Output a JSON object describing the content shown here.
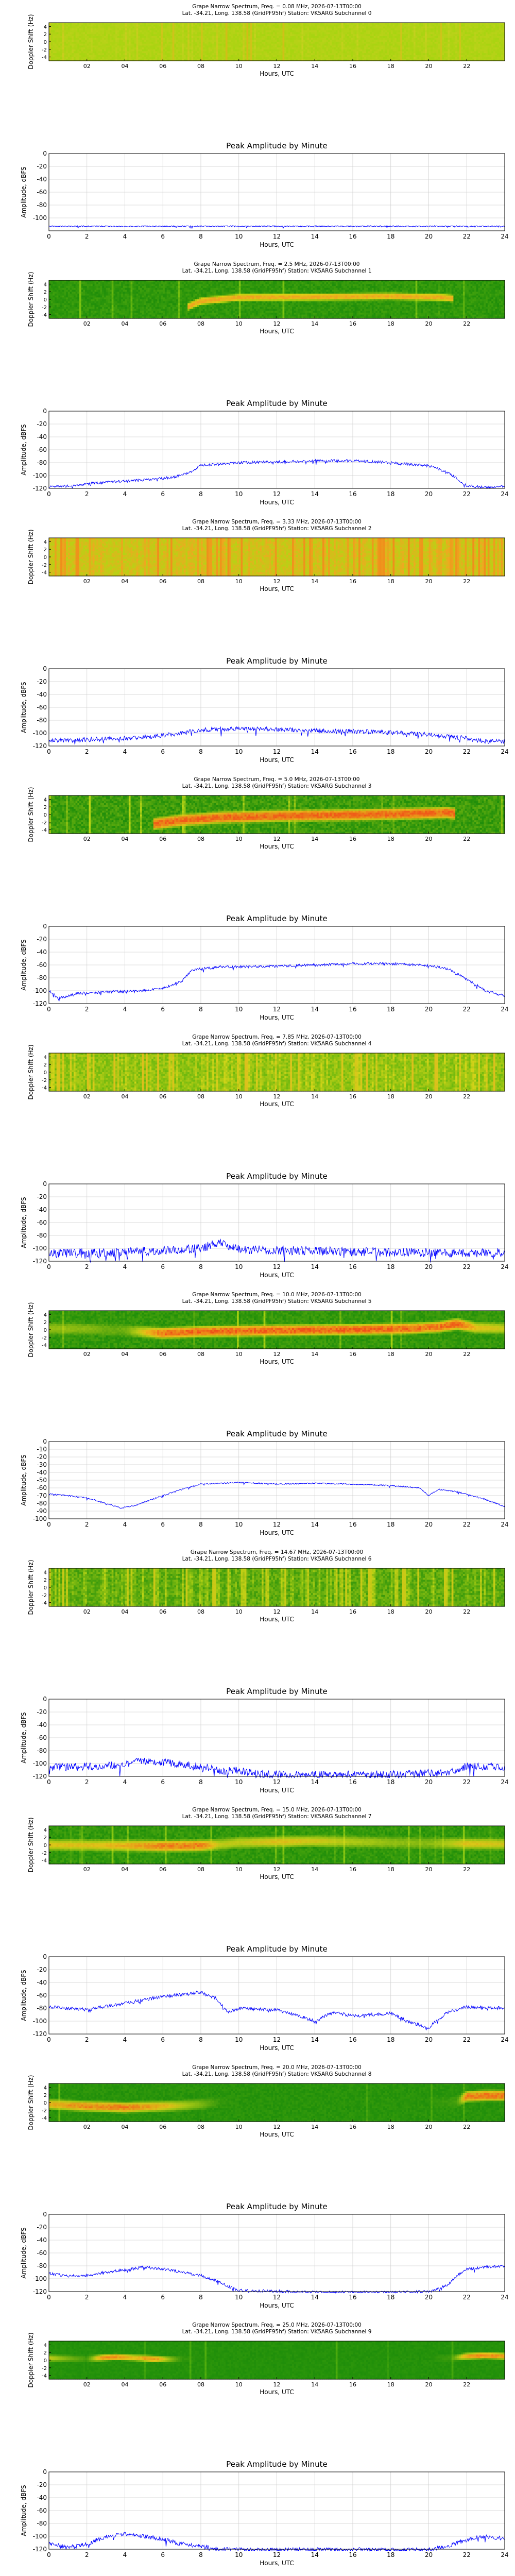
{
  "figure": {
    "station_line": "Lat. -34.21, Long. 138.58 (GridPF95hf) Station: VK5ARG Subchannel {n}",
    "amp_title": "Peak Amplitude by Minute",
    "xlabel": "Hours, UTC",
    "spec_ylabel": "Doppler Shift (Hz)",
    "amp_ylabel": "Amplitude, dBFS",
    "spec_xticks": [
      "02",
      "04",
      "06",
      "08",
      "10",
      "12",
      "14",
      "16",
      "18",
      "20",
      "22"
    ],
    "amp_xticks": [
      "0",
      "2",
      "4",
      "6",
      "8",
      "10",
      "12",
      "14",
      "16",
      "18",
      "20",
      "22",
      "24"
    ],
    "spec_yticks": [
      "4",
      "2",
      "0",
      "-2",
      "-4"
    ]
  },
  "chart_data": [
    {
      "type": "heatmap",
      "title": "Grape Narrow Spectrum, Freq. = 0.08 MHz, 2026-07-13T00:00",
      "subtitle": "Lat. -34.21, Long. 138.58 (GridPF95hf) Station: VK5ARG Subchannel 0",
      "xlabel": "Hours, UTC",
      "ylabel": "Doppler Shift (Hz)",
      "xlim": [
        0,
        24
      ],
      "ylim": [
        -5,
        5
      ],
      "colors": {
        "background": "#a7d410",
        "noise_hi": "#c8d020",
        "band": "#c8d020",
        "band_peak": "#d9b010"
      },
      "band": null,
      "noise": 0.55,
      "stripes": 0.15
    },
    {
      "type": "line",
      "title": "Peak Amplitude by Minute",
      "xlabel": "Hours, UTC",
      "ylabel": "Amplitude, dBFS",
      "xlim": [
        0,
        24
      ],
      "ylim": [
        -120,
        0
      ],
      "yticks": [
        0,
        -20,
        -40,
        -60,
        -80,
        -100
      ],
      "color": "#0000ff",
      "noise": 1.0,
      "x": [
        0,
        24
      ],
      "y": [
        -113,
        -113
      ]
    },
    {
      "type": "heatmap",
      "title": "Grape Narrow Spectrum, Freq. = 2.5 MHz, 2026-07-13T00:00",
      "subtitle": "Lat. -34.21, Long. 138.58 (GridPF95hf) Station: VK5ARG Subchannel 1",
      "xlabel": "Hours, UTC",
      "ylabel": "Doppler Shift (Hz)",
      "xlim": [
        0,
        24
      ],
      "ylim": [
        -5,
        5
      ],
      "colors": {
        "background": "#1f8e0a",
        "noise_hi": "#7cc312",
        "band": "#d6e010",
        "band_peak": "#f0a020"
      },
      "band": {
        "x": [
          7.3,
          8.0,
          10,
          14,
          18,
          20.8,
          21.3
        ],
        "center": [
          -2.0,
          -0.5,
          0.5,
          0.6,
          0.8,
          0.5,
          0.2
        ],
        "width": 2.2
      },
      "noise": 0.35,
      "stripes": 0.05
    },
    {
      "type": "line",
      "title": "Peak Amplitude by Minute",
      "xlabel": "Hours, UTC",
      "ylabel": "Amplitude, dBFS",
      "xlim": [
        0,
        24
      ],
      "ylim": [
        -120,
        0
      ],
      "yticks": [
        0,
        -20,
        -40,
        -60,
        -80,
        -100,
        -120
      ],
      "color": "#0000ff",
      "noise": 2.0,
      "x": [
        0,
        1,
        3,
        5,
        6.5,
        7.5,
        8.0,
        10,
        12,
        14,
        16,
        18,
        20,
        21.0,
        22.0,
        23,
        24
      ],
      "y": [
        -118,
        -116,
        -110,
        -107,
        -103,
        -95,
        -84,
        -80,
        -79,
        -77,
        -77,
        -80,
        -85,
        -95,
        -116,
        -118,
        -117
      ]
    },
    {
      "type": "heatmap",
      "title": "Grape Narrow Spectrum, Freq. = 3.33 MHz, 2026-07-13T00:00",
      "subtitle": "Lat. -34.21, Long. 138.58 (GridPF95hf) Station: VK5ARG Subchannel 2",
      "xlabel": "Hours, UTC",
      "ylabel": "Doppler Shift (Hz)",
      "xlim": [
        0,
        24
      ],
      "ylim": [
        -5,
        5
      ],
      "colors": {
        "background": "#b5d414",
        "noise_hi": "#f0a820",
        "band": "#f0a820",
        "band_peak": "#f07a18"
      },
      "band": null,
      "noise": 0.65,
      "stripes": 0.6
    },
    {
      "type": "line",
      "title": "Peak Amplitude by Minute",
      "xlabel": "Hours, UTC",
      "ylabel": "Amplitude, dBFS",
      "xlim": [
        0,
        24
      ],
      "ylim": [
        -120,
        0
      ],
      "yticks": [
        0,
        -20,
        -40,
        -60,
        -80,
        -100,
        -120
      ],
      "color": "#0000ff",
      "noise": 3.5,
      "x": [
        0,
        2,
        4,
        6,
        7,
        8,
        10,
        12,
        14,
        16,
        18,
        20,
        21,
        22,
        23,
        24
      ],
      "y": [
        -112,
        -110,
        -108,
        -104,
        -100,
        -95,
        -93,
        -94,
        -96,
        -97,
        -99,
        -102,
        -105,
        -108,
        -113,
        -112
      ]
    },
    {
      "type": "heatmap",
      "title": "Grape Narrow Spectrum, Freq. = 5.0 MHz, 2026-07-13T00:00",
      "subtitle": "Lat. -34.21, Long. 138.58 (GridPF95hf) Station: VK5ARG Subchannel 3",
      "xlabel": "Hours, UTC",
      "ylabel": "Doppler Shift (Hz)",
      "xlim": [
        0,
        24
      ],
      "ylim": [
        -5,
        5
      ],
      "colors": {
        "background": "#1f8e0a",
        "noise_hi": "#b9d616",
        "band": "#e0d418",
        "band_peak": "#f05a18"
      },
      "band": {
        "x": [
          5.5,
          7.0,
          9.0,
          12,
          16,
          19,
          21.0,
          21.4
        ],
        "center": [
          -2.5,
          -1.5,
          -0.8,
          -0.4,
          -0.1,
          0.2,
          0.5,
          0.2
        ],
        "width": 3.6
      },
      "noise": 0.4,
      "stripes": 0.05
    },
    {
      "type": "line",
      "title": "Peak Amplitude by Minute",
      "xlabel": "Hours, UTC",
      "ylabel": "Amplitude, dBFS",
      "xlim": [
        0,
        24
      ],
      "ylim": [
        -120,
        0
      ],
      "yticks": [
        0,
        -20,
        -40,
        -60,
        -80,
        -100,
        -120
      ],
      "color": "#0000ff",
      "noise": 2.0,
      "x": [
        0,
        0.5,
        1.5,
        3,
        5,
        6,
        7,
        7.5,
        9,
        12,
        14,
        16,
        18,
        20,
        21,
        22,
        23,
        24
      ],
      "y": [
        -100,
        -112,
        -104,
        -102,
        -100,
        -96,
        -85,
        -68,
        -63,
        -62,
        -60,
        -58,
        -58,
        -61,
        -66,
        -82,
        -100,
        -108
      ]
    },
    {
      "type": "heatmap",
      "title": "Grape Narrow Spectrum, Freq. = 7.85 MHz, 2026-07-13T00:00",
      "subtitle": "Lat. -34.21, Long. 138.58 (GridPF95hf) Station: VK5ARG Subchannel 4",
      "xlabel": "Hours, UTC",
      "ylabel": "Doppler Shift (Hz)",
      "xlim": [
        0,
        24
      ],
      "ylim": [
        -5,
        5
      ],
      "colors": {
        "background": "#6cb80e",
        "noise_hi": "#d0d418",
        "band": "#d0d418",
        "band_peak": "#e8b020"
      },
      "band": null,
      "noise": 0.7,
      "stripes": 0.45
    },
    {
      "type": "line",
      "title": "Peak Amplitude by Minute",
      "xlabel": "Hours, UTC",
      "ylabel": "Amplitude, dBFS",
      "xlim": [
        0,
        24
      ],
      "ylim": [
        -120,
        0
      ],
      "yticks": [
        0,
        -20,
        -40,
        -60,
        -80,
        -100,
        -120
      ],
      "color": "#0000ff",
      "noise": 7.0,
      "x": [
        0,
        4,
        8,
        9,
        10,
        14,
        18,
        22,
        24
      ],
      "y": [
        -108,
        -106,
        -100,
        -90,
        -102,
        -104,
        -106,
        -108,
        -106
      ]
    },
    {
      "type": "heatmap",
      "title": "Grape Narrow Spectrum, Freq. = 10.0 MHz, 2026-07-13T00:00",
      "subtitle": "Lat. -34.21, Long. 138.58 (GridPF95hf) Station: VK5ARG Subchannel 5",
      "xlabel": "Hours, UTC",
      "ylabel": "Doppler Shift (Hz)",
      "xlim": [
        0,
        24
      ],
      "ylim": [
        -5,
        5
      ],
      "colors": {
        "background": "#1f8e0a",
        "noise_hi": "#a6d012",
        "band": "#e8e018",
        "band_peak": "#f05018"
      },
      "band": {
        "x": [
          0,
          2,
          3,
          4,
          5,
          6,
          8,
          12,
          16,
          19,
          20.5,
          21.5,
          22.5,
          24
        ],
        "center": [
          0.3,
          0.2,
          0.0,
          -0.2,
          -0.6,
          -0.9,
          -0.5,
          -0.2,
          0.0,
          0.3,
          0.7,
          1.5,
          0.5,
          0.3
        ],
        "width": 3.4,
        "strength": [
          0.35,
          0.3,
          0.2,
          0.2,
          0.6,
          0.95,
          1,
          1,
          1,
          0.95,
          0.9,
          1,
          0.6,
          0.5
        ]
      },
      "noise": 0.3,
      "stripes": 0.05
    },
    {
      "type": "line",
      "title": "Peak Amplitude by Minute",
      "xlabel": "Hours, UTC",
      "ylabel": "Amplitude, dBFS",
      "xlim": [
        0,
        24
      ],
      "ylim": [
        -100,
        0
      ],
      "yticks": [
        0,
        -10,
        -20,
        -30,
        -40,
        -50,
        -60,
        -70,
        -80,
        -90,
        -100
      ],
      "color": "#0000ff",
      "noise": 0.8,
      "x": [
        0,
        1,
        2,
        3,
        3.8,
        4.5,
        6,
        7,
        8,
        10,
        12,
        14,
        16,
        18,
        19.5,
        20,
        20.5,
        21.5,
        23,
        24
      ],
      "y": [
        -68,
        -70,
        -73,
        -80,
        -86,
        -83,
        -70,
        -62,
        -55,
        -53,
        -55,
        -54,
        -55,
        -57,
        -60,
        -70,
        -62,
        -65,
        -75,
        -84
      ]
    },
    {
      "type": "heatmap",
      "title": "Grape Narrow Spectrum, Freq. = 14.67 MHz, 2026-07-13T00:00",
      "subtitle": "Lat. -34.21, Long. 138.58 (GridPF95hf) Station: VK5ARG Subchannel 6",
      "xlabel": "Hours, UTC",
      "ylabel": "Doppler Shift (Hz)",
      "xlim": [
        0,
        24
      ],
      "ylim": [
        -5,
        5
      ],
      "colors": {
        "background": "#3a9a0c",
        "noise_hi": "#b8d414",
        "band": "#c8d416",
        "band_peak": "#dcc018"
      },
      "band": null,
      "noise": 0.55,
      "stripes": 0.5
    },
    {
      "type": "line",
      "title": "Peak Amplitude by Minute",
      "xlabel": "Hours, UTC",
      "ylabel": "Amplitude, dBFS",
      "xlim": [
        0,
        24
      ],
      "ylim": [
        -120,
        0
      ],
      "yticks": [
        0,
        -20,
        -40,
        -60,
        -80,
        -100,
        -120
      ],
      "color": "#0000ff",
      "noise": 6.0,
      "x": [
        0,
        3,
        5,
        8,
        9,
        10,
        11,
        14,
        18,
        21,
        22,
        24
      ],
      "y": [
        -106,
        -104,
        -96,
        -104,
        -112,
        -110,
        -116,
        -118,
        -117,
        -114,
        -104,
        -106
      ]
    },
    {
      "type": "heatmap",
      "title": "Grape Narrow Spectrum, Freq. = 15.0 MHz, 2026-07-13T00:00",
      "subtitle": "Lat. -34.21, Long. 138.58 (GridPF95hf) Station: VK5ARG Subchannel 7",
      "xlabel": "Hours, UTC",
      "ylabel": "Doppler Shift (Hz)",
      "xlim": [
        0,
        24
      ],
      "ylim": [
        -5,
        5
      ],
      "colors": {
        "background": "#1f8e0a",
        "noise_hi": "#8ac812",
        "band": "#dede18",
        "band_peak": "#f06818"
      },
      "band": {
        "x": [
          0,
          2,
          4,
          6,
          8,
          9,
          10,
          12,
          14,
          16,
          18,
          20,
          22,
          24
        ],
        "center": [
          0.0,
          -0.1,
          -0.2,
          -0.3,
          -0.2,
          0.1,
          0.6,
          0.8,
          1.0,
          0.8,
          0.6,
          0.4,
          0.3,
          0.2
        ],
        "width": 3.4,
        "strength": [
          0.6,
          0.6,
          0.7,
          0.95,
          0.95,
          0.5,
          0.5,
          0.6,
          0.55,
          0.45,
          0.35,
          0.3,
          0.6,
          0.55
        ]
      },
      "noise": 0.35,
      "stripes": 0.05
    },
    {
      "type": "line",
      "title": "Peak Amplitude by Minute",
      "xlabel": "Hours, UTC",
      "ylabel": "Amplitude, dBFS",
      "xlim": [
        0,
        24
      ],
      "ylim": [
        -120,
        0
      ],
      "yticks": [
        0,
        -20,
        -40,
        -60,
        -80,
        -100,
        -120
      ],
      "color": "#0000ff",
      "noise": 2.5,
      "x": [
        0,
        2,
        4,
        6,
        8,
        8.8,
        9.4,
        10,
        12,
        13,
        14,
        15,
        16,
        18,
        19,
        20,
        21,
        22,
        24
      ],
      "y": [
        -78,
        -82,
        -72,
        -62,
        -55,
        -65,
        -86,
        -80,
        -83,
        -90,
        -100,
        -86,
        -92,
        -88,
        -102,
        -110,
        -86,
        -78,
        -80
      ]
    },
    {
      "type": "heatmap",
      "title": "Grape Narrow Spectrum, Freq. = 20.0 MHz, 2026-07-13T00:00",
      "subtitle": "Lat. -34.21, Long. 138.58 (GridPF95hf) Station: VK5ARG Subchannel 8",
      "xlabel": "Hours, UTC",
      "ylabel": "Doppler Shift (Hz)",
      "xlim": [
        0,
        24
      ],
      "ylim": [
        -5,
        5
      ],
      "colors": {
        "background": "#1f8e0a",
        "noise_hi": "#6ebc10",
        "band": "#d6dc18",
        "band_peak": "#f06a18"
      },
      "band": {
        "x": [
          0,
          2,
          4,
          6,
          7,
          8,
          9,
          10,
          20,
          21.5,
          22,
          23,
          24
        ],
        "center": [
          -0.5,
          -1.0,
          -1.3,
          -1.0,
          -0.8,
          -0.5,
          0,
          0,
          0,
          0.2,
          1.6,
          1.8,
          1.8
        ],
        "width": 3.2,
        "strength": [
          0.7,
          0.9,
          0.95,
          0.7,
          0.5,
          0.3,
          0.05,
          0,
          0,
          0.1,
          1,
          1,
          1
        ]
      },
      "noise": 0.25,
      "stripes": 0.02
    },
    {
      "type": "line",
      "title": "Peak Amplitude by Minute",
      "xlabel": "Hours, UTC",
      "ylabel": "Amplitude, dBFS",
      "xlim": [
        0,
        24
      ],
      "ylim": [
        -120,
        0
      ],
      "yticks": [
        0,
        -20,
        -40,
        -60,
        -80,
        -100,
        -120
      ],
      "color": "#0000ff",
      "noise": 2.2,
      "x": [
        0,
        1,
        2,
        3,
        4,
        5,
        6,
        7,
        8,
        9,
        9.5,
        10,
        14,
        18,
        20,
        21,
        21.5,
        22,
        23,
        24
      ],
      "y": [
        -92,
        -96,
        -95,
        -90,
        -86,
        -82,
        -85,
        -90,
        -95,
        -105,
        -113,
        -118,
        -121,
        -121,
        -120,
        -110,
        -95,
        -85,
        -82,
        -80
      ]
    },
    {
      "type": "heatmap",
      "title": "Grape Narrow Spectrum, Freq. = 25.0 MHz, 2026-07-13T00:00",
      "subtitle": "Lat. -34.21, Long. 138.58 (GridPF95hf) Station: VK5ARG Subchannel 9",
      "xlabel": "Hours, UTC",
      "ylabel": "Doppler Shift (Hz)",
      "xlim": [
        0,
        24
      ],
      "ylim": [
        -5,
        5
      ],
      "colors": {
        "background": "#1f8e0a",
        "noise_hi": "#5ab40e",
        "band": "#dcdc18",
        "band_peak": "#f08018"
      },
      "band": {
        "x": [
          0,
          1,
          2,
          2.8,
          3.5,
          4.5,
          5.5,
          6.5,
          7,
          8,
          20,
          21.2,
          22,
          23,
          24
        ],
        "center": [
          0.5,
          0.4,
          0.3,
          0.6,
          0.8,
          0.6,
          0.3,
          0.2,
          0.3,
          0.3,
          0.5,
          0.5,
          1.0,
          1.2,
          1.0
        ],
        "width": 2.0,
        "strength": [
          0.55,
          0.3,
          0.1,
          0.9,
          0.95,
          0.7,
          0.95,
          0.3,
          0.05,
          0,
          0,
          0.1,
          0.85,
          1,
          0.9
        ]
      },
      "noise": 0.2,
      "stripes": 0.02
    },
    {
      "type": "line",
      "title": "Peak Amplitude by Minute",
      "xlabel": "Hours, UTC",
      "ylabel": "Amplitude, dBFS",
      "xlim": [
        0,
        24
      ],
      "ylim": [
        -120,
        0
      ],
      "yticks": [
        0,
        -20,
        -40,
        -60,
        -80,
        -100,
        -120
      ],
      "color": "#0000ff",
      "noise": 3.5,
      "x": [
        0,
        1,
        2,
        3,
        4,
        5,
        6,
        7,
        8,
        9,
        10,
        20,
        21,
        22,
        23,
        24
      ],
      "y": [
        -110,
        -118,
        -112,
        -100,
        -96,
        -100,
        -104,
        -112,
        -116,
        -120,
        -121,
        -121,
        -115,
        -105,
        -100,
        -104
      ]
    }
  ]
}
